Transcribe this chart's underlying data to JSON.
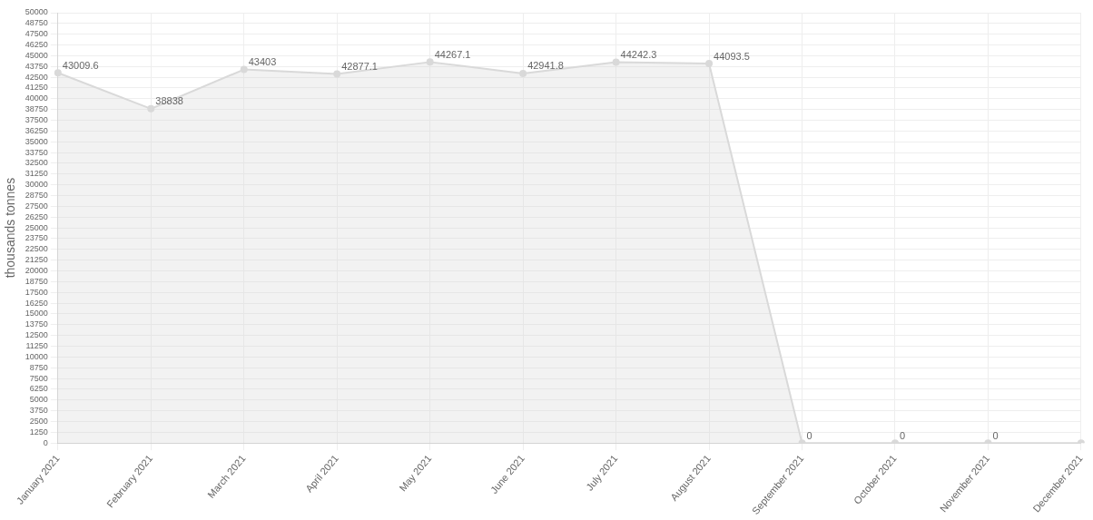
{
  "chart_data": {
    "type": "area",
    "ylabel": "thousands tonnes",
    "categories": [
      "January 2021",
      "February 2021",
      "March 2021",
      "April 2021",
      "May 2021",
      "June 2021",
      "July 2021",
      "August 2021",
      "September 2021",
      "October 2021",
      "November 2021",
      "December 2021"
    ],
    "values": [
      43009.6,
      38838,
      43403,
      42877.1,
      44267.1,
      42941.8,
      44242.3,
      44093.5,
      0,
      0,
      0,
      0
    ],
    "value_labels": [
      "43009.6",
      "38838",
      "43403",
      "42877.1",
      "44267.1",
      "42941.8",
      "44242.3",
      "44093.5",
      "0",
      "0",
      "0",
      null
    ],
    "color": "#d9d9d9",
    "ylim": [
      0,
      50000
    ],
    "yticks": [
      0,
      1250,
      2500,
      3750,
      5000,
      6250,
      7500,
      8750,
      10000,
      11250,
      12500,
      13750,
      15000,
      16250,
      17500,
      18750,
      20000,
      21250,
      22500,
      23750,
      25000,
      26250,
      27500,
      28750,
      30000,
      31250,
      32500,
      33750,
      35000,
      36250,
      37500,
      38750,
      40000,
      41250,
      42500,
      43750,
      45000,
      46250,
      47500,
      48750,
      50000
    ],
    "grid": true,
    "marker": "circle"
  }
}
